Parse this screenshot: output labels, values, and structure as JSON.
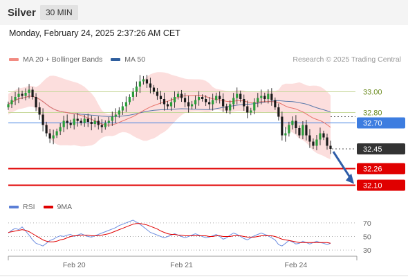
{
  "header": {
    "title": "Silver",
    "interval": "30 MIN",
    "datetime": "Monday, February 24, 2025 2:37:26 AM CET"
  },
  "legend": {
    "items": [
      {
        "label": "MA 20 + Bollinger Bands",
        "color": "#f28b82"
      },
      {
        "label": "MA 50",
        "color": "#2e5e9e"
      }
    ],
    "credit": "Research © 2025 Trading Central"
  },
  "rsi_legend": {
    "items": [
      {
        "label": "RSI",
        "color": "#5b7fd6"
      },
      {
        "label": "9MA",
        "color": "#e00000"
      }
    ]
  },
  "chart_data": [
    {
      "type": "candlestick",
      "title": "",
      "ylim": [
        31.95,
        33.25
      ],
      "x_labels": [
        "Feb 20",
        "Feb 21",
        "Feb 24"
      ],
      "levels": [
        {
          "value": 33.0,
          "label": "33.00",
          "style": "resistance"
        },
        {
          "value": 32.8,
          "label": "32.80",
          "style": "resistance"
        },
        {
          "value": 32.7,
          "label": "32.70",
          "style": "pivot"
        },
        {
          "value": 32.45,
          "label": "32.45",
          "style": "last"
        },
        {
          "value": 32.26,
          "label": "32.26",
          "style": "support"
        },
        {
          "value": 32.1,
          "label": "32.10",
          "style": "support"
        }
      ],
      "projection": {
        "from": 32.45,
        "to": 32.1
      },
      "close": [
        32.88,
        32.92,
        32.95,
        32.98,
        32.96,
        32.99,
        33.02,
        32.95,
        32.85,
        32.78,
        32.68,
        32.6,
        32.55,
        32.58,
        32.62,
        32.66,
        32.72,
        32.7,
        32.68,
        32.74,
        32.72,
        32.7,
        32.74,
        32.71,
        32.69,
        32.72,
        32.68,
        32.66,
        32.7,
        32.72,
        32.76,
        32.78,
        32.82,
        32.86,
        32.9,
        32.95,
        33.0,
        33.05,
        33.1,
        33.12,
        33.08,
        33.04,
        33.0,
        32.96,
        32.93,
        32.88,
        32.86,
        32.9,
        32.95,
        32.98,
        32.94,
        32.9,
        32.86,
        32.88,
        32.92,
        32.95,
        32.93,
        32.9,
        32.88,
        32.92,
        32.96,
        32.93,
        32.86,
        32.82,
        32.88,
        32.94,
        32.98,
        32.93,
        32.86,
        32.8,
        32.82,
        32.9,
        32.94,
        32.96,
        32.93,
        32.98,
        32.92,
        32.85,
        32.76,
        32.58,
        32.6,
        32.68,
        32.72,
        32.65,
        32.58,
        32.68,
        32.58,
        32.52,
        32.48,
        32.54,
        32.6,
        32.56,
        32.48,
        32.45
      ]
    },
    {
      "type": "line",
      "title": "",
      "yticks": [
        30,
        50,
        70
      ],
      "ylim": [
        25,
        80
      ],
      "series": [
        {
          "name": "RSI",
          "values": [
            55,
            59,
            62,
            60,
            64,
            58,
            52,
            45,
            40,
            38,
            36,
            40,
            44,
            46,
            49,
            51,
            50,
            52,
            53,
            50,
            52,
            54,
            52,
            50,
            49,
            51,
            53,
            55,
            57,
            59,
            61,
            63,
            66,
            68,
            70,
            72,
            74,
            71,
            68,
            64,
            60,
            56,
            54,
            52,
            50,
            48,
            50,
            52,
            54,
            52,
            50,
            48,
            50,
            52,
            54,
            52,
            50,
            48,
            49,
            51,
            53,
            50,
            46,
            48,
            52,
            55,
            53,
            50,
            47,
            45,
            48,
            51,
            53,
            55,
            53,
            51,
            48,
            45,
            38,
            36,
            40,
            44,
            42,
            39,
            40,
            43,
            41,
            39,
            41,
            43,
            41,
            40,
            38,
            40
          ]
        },
        {
          "name": "9MA",
          "values": [
            56,
            57,
            58,
            59,
            60,
            59,
            57,
            54,
            51,
            48,
            45,
            43,
            42,
            42,
            43,
            45,
            46,
            48,
            50,
            51,
            51,
            52,
            52,
            52,
            51,
            51,
            51,
            52,
            53,
            54,
            56,
            58,
            60,
            62,
            64,
            66,
            68,
            69,
            69,
            68,
            67,
            65,
            63,
            61,
            58,
            56,
            54,
            53,
            53,
            52,
            52,
            51,
            51,
            51,
            51,
            51,
            51,
            51,
            50,
            50,
            51,
            51,
            50,
            50,
            50,
            51,
            51,
            51,
            50,
            49,
            49,
            49,
            50,
            51,
            51,
            51,
            51,
            50,
            48,
            46,
            45,
            44,
            43,
            42,
            41,
            41,
            41,
            41,
            41,
            41,
            41,
            41,
            41,
            40
          ]
        }
      ]
    }
  ]
}
